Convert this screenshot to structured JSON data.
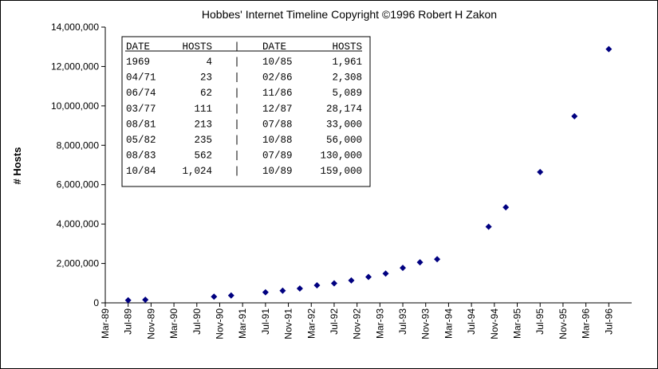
{
  "chart_data": {
    "type": "scatter",
    "title": "Hobbes' Internet Timeline Copyright ©1996 Robert H Zakon",
    "xlabel": "",
    "ylabel": "# Hosts",
    "ylim": [
      0,
      14000000
    ],
    "yticks": [
      "0",
      "2,000,000",
      "4,000,000",
      "6,000,000",
      "8,000,000",
      "10,000,000",
      "12,000,000",
      "14,000,000"
    ],
    "ytick_values": [
      0,
      2000000,
      4000000,
      6000000,
      8000000,
      10000000,
      12000000,
      14000000
    ],
    "xticks": [
      "Mar-89",
      "Jul-89",
      "Nov-89",
      "Mar-90",
      "Jul-90",
      "Nov-90",
      "Mar-91",
      "Jul-91",
      "Nov-91",
      "Mar-92",
      "Jul-92",
      "Nov-92",
      "Mar-93",
      "Jul-93",
      "Nov-93",
      "Mar-94",
      "Jul-94",
      "Nov-94",
      "Mar-95",
      "Jul-95",
      "Nov-95",
      "Mar-96",
      "Jul-96"
    ],
    "grid": false,
    "marker": "diamond",
    "marker_color": "#000080",
    "points": [
      {
        "x": "1989-07",
        "y": 130000
      },
      {
        "x": "1989-10",
        "y": 159000
      },
      {
        "x": "1990-10",
        "y": 313000
      },
      {
        "x": "1991-01",
        "y": 376000
      },
      {
        "x": "1991-07",
        "y": 535000
      },
      {
        "x": "1991-10",
        "y": 617000
      },
      {
        "x": "1992-01",
        "y": 727000
      },
      {
        "x": "1992-04",
        "y": 890000
      },
      {
        "x": "1992-07",
        "y": 992000
      },
      {
        "x": "1992-10",
        "y": 1136000
      },
      {
        "x": "1993-01",
        "y": 1313000
      },
      {
        "x": "1993-04",
        "y": 1486000
      },
      {
        "x": "1993-07",
        "y": 1776000
      },
      {
        "x": "1993-10",
        "y": 2056000
      },
      {
        "x": "1994-01",
        "y": 2217000
      },
      {
        "x": "1994-10",
        "y": 3864000
      },
      {
        "x": "1995-01",
        "y": 4852000
      },
      {
        "x": "1995-07",
        "y": 6642000
      },
      {
        "x": "1996-01",
        "y": 9472000
      },
      {
        "x": "1996-07",
        "y": 12881000
      }
    ],
    "annotation_table": {
      "headers": [
        "DATE",
        "HOSTS",
        "|",
        "DATE",
        "HOSTS"
      ],
      "rows": [
        [
          "1969",
          "4",
          "|",
          "10/85",
          "1,961"
        ],
        [
          "04/71",
          "23",
          "|",
          "02/86",
          "2,308"
        ],
        [
          "06/74",
          "62",
          "|",
          "11/86",
          "5,089"
        ],
        [
          "03/77",
          "111",
          "|",
          "12/87",
          "28,174"
        ],
        [
          "08/81",
          "213",
          "|",
          "07/88",
          "33,000"
        ],
        [
          "05/82",
          "235",
          "|",
          "10/88",
          "56,000"
        ],
        [
          "08/83",
          "562",
          "|",
          "07/89",
          "130,000"
        ],
        [
          "10/84",
          "1,024",
          "|",
          "10/89",
          "159,000"
        ]
      ]
    }
  }
}
